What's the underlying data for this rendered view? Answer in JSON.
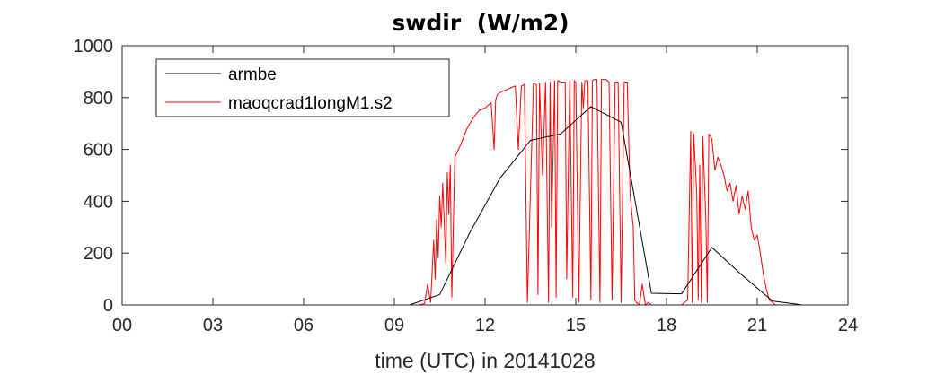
{
  "chart_data": {
    "type": "line",
    "title": "swdir  (W/m2)",
    "xlabel": "time (UTC) in 20141028",
    "ylabel": "",
    "xlim": [
      0,
      24
    ],
    "ylim": [
      0,
      1000
    ],
    "x_ticks": [
      0,
      3,
      6,
      9,
      12,
      15,
      18,
      21,
      24
    ],
    "x_tick_labels": [
      "00",
      "03",
      "06",
      "09",
      "12",
      "15",
      "18",
      "21",
      "24"
    ],
    "y_ticks": [
      0,
      200,
      400,
      600,
      800,
      1000
    ],
    "y_tick_labels": [
      "0",
      "200",
      "400",
      "600",
      "800",
      "1000"
    ],
    "grid": false,
    "legend_position": "top-left",
    "series": [
      {
        "name": "armbe",
        "color": "#000000",
        "x": [
          0,
          1,
          2,
          3,
          4,
          5,
          6,
          7,
          8,
          9,
          9.5,
          10.5,
          11.5,
          12.5,
          13.5,
          14.5,
          15.5,
          16.5,
          17.5,
          18.5,
          19.5,
          20.5,
          21.5,
          22.5,
          23.5,
          24
        ],
        "y": [
          0,
          0,
          0,
          0,
          0,
          0,
          0,
          0,
          0,
          0,
          0,
          40,
          280,
          490,
          635,
          660,
          765,
          705,
          45,
          43,
          222,
          115,
          15,
          0,
          0,
          0
        ]
      },
      {
        "name": "maoqcrad1longM1.s2",
        "color": "#ff0000",
        "x": [
          0,
          9.8,
          10.0,
          10.1,
          10.2,
          10.3,
          10.35,
          10.4,
          10.45,
          10.5,
          10.55,
          10.6,
          10.7,
          10.75,
          10.8,
          10.85,
          10.9,
          11.0,
          11.2,
          11.4,
          11.6,
          11.8,
          12.0,
          12.2,
          12.3,
          12.35,
          12.4,
          12.5,
          12.7,
          12.9,
          13.0,
          13.1,
          13.2,
          13.3,
          13.4,
          13.6,
          13.7,
          13.75,
          13.8,
          13.9,
          14.0,
          14.1,
          14.15,
          14.2,
          14.3,
          14.35,
          14.4,
          14.5,
          14.6,
          14.65,
          14.7,
          14.8,
          14.9,
          14.95,
          15.0,
          15.1,
          15.2,
          15.25,
          15.3,
          15.4,
          15.5,
          15.55,
          15.6,
          15.7,
          15.8,
          15.85,
          15.9,
          16.0,
          16.1,
          16.2,
          16.3,
          16.4,
          16.5,
          16.6,
          16.7,
          16.8,
          16.9,
          16.95,
          17.0,
          17.1,
          17.2,
          17.3,
          17.4,
          17.5,
          17.6,
          17.8,
          18.0,
          18.5,
          18.7,
          18.8,
          18.85,
          18.9,
          19.0,
          19.05,
          19.1,
          19.15,
          19.2,
          19.3,
          19.35,
          19.4,
          19.5,
          19.6,
          19.7,
          19.8,
          19.9,
          20.0,
          20.1,
          20.2,
          20.3,
          20.4,
          20.5,
          20.6,
          20.7,
          20.8,
          20.9,
          21.0,
          21.1,
          21.2,
          21.3,
          21.4,
          21.5,
          21.6,
          21.7,
          21.8,
          24
        ],
        "y": [
          0,
          0,
          5,
          80,
          10,
          250,
          100,
          330,
          180,
          420,
          300,
          470,
          160,
          510,
          350,
          540,
          30,
          570,
          620,
          680,
          720,
          750,
          760,
          780,
          600,
          790,
          810,
          820,
          830,
          840,
          845,
          600,
          845,
          850,
          10,
          855,
          850,
          40,
          855,
          500,
          860,
          10,
          860,
          300,
          865,
          30,
          865,
          860,
          860,
          860,
          100,
          865,
          30,
          865,
          860,
          10,
          860,
          760,
          865,
          865,
          20,
          865,
          870,
          870,
          10,
          870,
          870,
          870,
          860,
          20,
          860,
          860,
          10,
          860,
          860,
          420,
          300,
          20,
          10,
          0,
          80,
          0,
          10,
          0,
          0,
          0,
          0,
          0,
          20,
          670,
          10,
          660,
          430,
          20,
          540,
          10,
          650,
          330,
          10,
          660,
          640,
          520,
          570,
          540,
          500,
          440,
          470,
          400,
          460,
          350,
          420,
          370,
          440,
          300,
          250,
          270,
          200,
          120,
          60,
          20,
          10,
          0,
          0,
          0,
          0
        ]
      }
    ]
  }
}
